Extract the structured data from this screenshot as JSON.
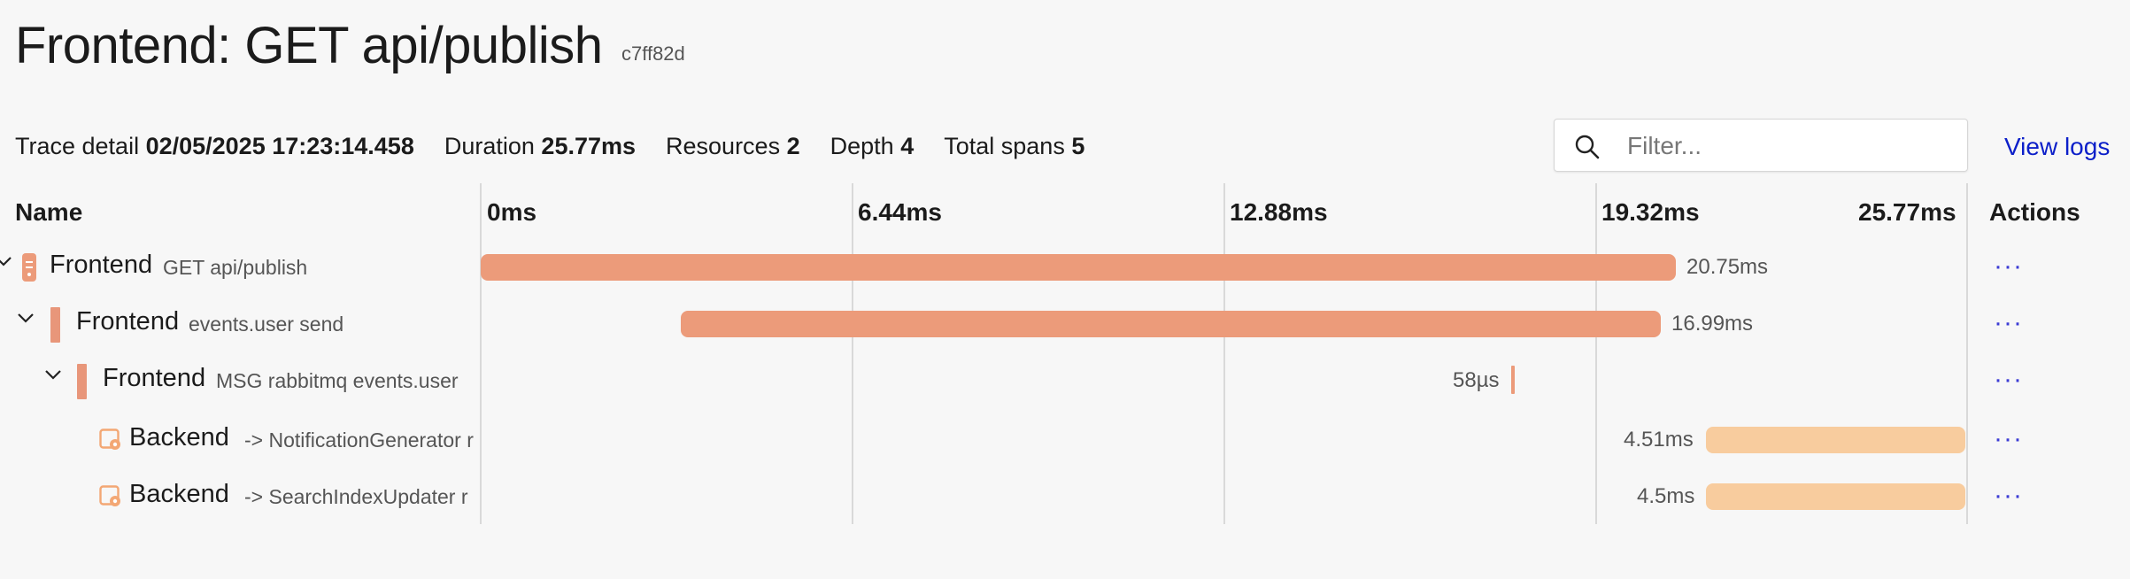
{
  "page": {
    "title": "Frontend: GET api/publish",
    "trace_id": "c7ff82d"
  },
  "summary": {
    "trace_detail_label": "Trace detail",
    "trace_detail_value": "02/05/2025 17:23:14.458",
    "duration_label": "Duration",
    "duration_value": "25.77ms",
    "resources_label": "Resources",
    "resources_value": "2",
    "depth_label": "Depth",
    "depth_value": "4",
    "spans_label": "Total spans",
    "spans_value": "5"
  },
  "filter": {
    "placeholder": "Filter...",
    "value": ""
  },
  "view_logs": "View logs",
  "columns": {
    "name": "Name",
    "actions": "Actions",
    "ticks": [
      "0ms",
      "6.44ms",
      "12.88ms",
      "19.32ms",
      "25.77ms"
    ]
  },
  "colors": {
    "frontend": "#ec9b7a",
    "backend": "#f8cc9e",
    "link": "#0c1fc9"
  },
  "spans": [
    {
      "service": "Frontend",
      "operation": "GET api/publish",
      "duration": "20.75ms",
      "icon": "server-icon"
    },
    {
      "service": "Frontend",
      "operation": "events.user send",
      "duration": "16.99ms",
      "icon": ""
    },
    {
      "service": "Frontend",
      "operation": "MSG rabbitmq events.user",
      "duration": "58µs",
      "icon": ""
    },
    {
      "service": "Backend",
      "operation": "-> NotificationGenerator r",
      "duration": "4.51ms",
      "icon": "service-gear-icon"
    },
    {
      "service": "Backend",
      "operation": "-> SearchIndexUpdater r",
      "duration": "4.5ms",
      "icon": "service-gear-icon"
    }
  ],
  "actions_label": "···"
}
